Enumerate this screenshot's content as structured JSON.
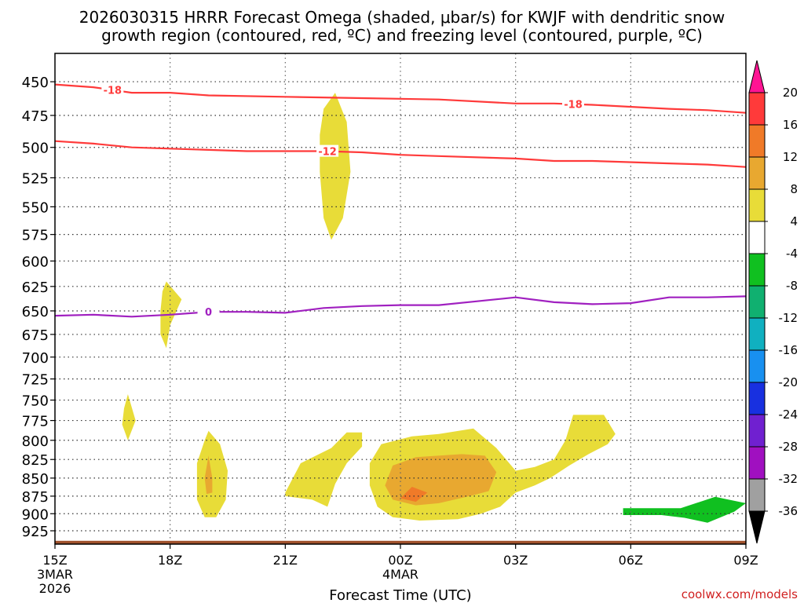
{
  "chart_data": {
    "type": "heatmap",
    "title_line1": "2026030315 HRRR Forecast Omega (shaded, μbar/s) for KWJF with dendritic snow",
    "title_line2": "growth region (contoured, red, ºC) and freezing level (contoured, purple, ºC)",
    "xlabel": "Forecast Time (UTC)",
    "credit": "coolwx.com/models",
    "x_range_hours": [
      0,
      18
    ],
    "x_ticks": [
      {
        "hour": 0,
        "label": "15Z",
        "sub1": "3MAR",
        "sub2": "2026"
      },
      {
        "hour": 3,
        "label": "18Z"
      },
      {
        "hour": 6,
        "label": "21Z"
      },
      {
        "hour": 9,
        "label": "00Z",
        "sub1": "4MAR"
      },
      {
        "hour": 12,
        "label": "03Z"
      },
      {
        "hour": 15,
        "label": "06Z"
      },
      {
        "hour": 18,
        "label": "09Z"
      }
    ],
    "y_ticks_hpa": [
      450,
      475,
      500,
      525,
      550,
      575,
      600,
      625,
      650,
      675,
      700,
      725,
      750,
      775,
      800,
      825,
      850,
      875,
      900,
      925
    ],
    "y_range_hpa": [
      430,
      945
    ],
    "ground_hpa": 940,
    "colorbar": {
      "labels": [
        "20",
        "16",
        "12",
        "8",
        "4",
        "-4",
        "-8",
        "-12",
        "-16",
        "-20",
        "-24",
        "-28",
        "-32",
        "-36"
      ],
      "colors_top_down": [
        "#ff1493",
        "#ff3a3a",
        "#f07a28",
        "#e8a830",
        "#e8dc38",
        "#ffffff",
        "#10c020",
        "#10b070",
        "#10b0c0",
        "#1890f0",
        "#1830e0",
        "#7020d0",
        "#a010c0",
        "#a0a0a0",
        "#000000"
      ]
    },
    "series": [
      {
        "name": "-18 C isotherm",
        "label": "-18",
        "color": "#ff3a3a",
        "label_hours": [
          1.5,
          13.5
        ],
        "points": [
          [
            0,
            452
          ],
          [
            1,
            454
          ],
          [
            2,
            458
          ],
          [
            3,
            458
          ],
          [
            4,
            460
          ],
          [
            6,
            461
          ],
          [
            8,
            462
          ],
          [
            10,
            463
          ],
          [
            12,
            466
          ],
          [
            13,
            466
          ],
          [
            14,
            467
          ],
          [
            16,
            470
          ],
          [
            17,
            471
          ],
          [
            18,
            473
          ]
        ]
      },
      {
        "name": "-12 C isotherm",
        "label": "-12",
        "color": "#ff3a3a",
        "label_hours": [
          7.1
        ],
        "points": [
          [
            0,
            495
          ],
          [
            1,
            497
          ],
          [
            2,
            500
          ],
          [
            3,
            501
          ],
          [
            4,
            502
          ],
          [
            5,
            503
          ],
          [
            6,
            503
          ],
          [
            7,
            503
          ],
          [
            8,
            504
          ],
          [
            9,
            506
          ],
          [
            10,
            507
          ],
          [
            12,
            509
          ],
          [
            13,
            511
          ],
          [
            14,
            511
          ],
          [
            16,
            513
          ],
          [
            17,
            514
          ],
          [
            18,
            516
          ]
        ]
      },
      {
        "name": "0 C freezing level",
        "label": "0",
        "color": "#a020c0",
        "label_hours": [
          4
        ],
        "points": [
          [
            0,
            655
          ],
          [
            1,
            654
          ],
          [
            2,
            656
          ],
          [
            3,
            654
          ],
          [
            4,
            651
          ],
          [
            5,
            651
          ],
          [
            6,
            652
          ],
          [
            7,
            647
          ],
          [
            8,
            645
          ],
          [
            9,
            644
          ],
          [
            10,
            644
          ],
          [
            11,
            640
          ],
          [
            12,
            636
          ],
          [
            13,
            641
          ],
          [
            14,
            643
          ],
          [
            15,
            642
          ],
          [
            16,
            636
          ],
          [
            17,
            636
          ],
          [
            18,
            635
          ]
        ]
      }
    ],
    "omega_regions": [
      {
        "name": "upper-lift-22z",
        "value": 4,
        "color": "#e8dc38",
        "points": [
          [
            7.0,
            470
          ],
          [
            7.3,
            458
          ],
          [
            7.6,
            480
          ],
          [
            7.7,
            520
          ],
          [
            7.5,
            560
          ],
          [
            7.2,
            580
          ],
          [
            7.0,
            560
          ],
          [
            6.9,
            520
          ],
          [
            6.9,
            490
          ]
        ]
      },
      {
        "name": "lift-18z",
        "value": 4,
        "color": "#e8dc38",
        "points": [
          [
            2.8,
            630
          ],
          [
            2.9,
            620
          ],
          [
            3.3,
            638
          ],
          [
            3.0,
            665
          ],
          [
            2.9,
            690
          ],
          [
            2.75,
            675
          ],
          [
            2.75,
            650
          ]
        ]
      },
      {
        "name": "lift-16z",
        "value": 4,
        "color": "#e8dc38",
        "points": [
          [
            1.8,
            760
          ],
          [
            1.9,
            743
          ],
          [
            2.1,
            775
          ],
          [
            1.9,
            800
          ],
          [
            1.75,
            780
          ]
        ]
      },
      {
        "name": "lift-19z",
        "value": 4,
        "color": "#e8dc38",
        "points": [
          [
            3.7,
            830
          ],
          [
            3.9,
            800
          ],
          [
            4.0,
            788
          ],
          [
            4.3,
            805
          ],
          [
            4.5,
            840
          ],
          [
            4.45,
            880
          ],
          [
            4.2,
            905
          ],
          [
            3.9,
            905
          ],
          [
            3.7,
            880
          ]
        ]
      },
      {
        "name": "core-19z",
        "value": 8,
        "color": "#e8a830",
        "points": [
          [
            3.9,
            850
          ],
          [
            4.0,
            820
          ],
          [
            4.1,
            850
          ],
          [
            4.1,
            870
          ],
          [
            3.95,
            872
          ]
        ]
      },
      {
        "name": "lift-2230z",
        "value": 4,
        "color": "#e8dc38",
        "points": [
          [
            6.0,
            870
          ],
          [
            6.4,
            830
          ],
          [
            7.2,
            810
          ],
          [
            7.6,
            790
          ],
          [
            8.0,
            790
          ],
          [
            8.0,
            808
          ],
          [
            7.6,
            830
          ],
          [
            7.3,
            858
          ],
          [
            7.1,
            890
          ],
          [
            6.7,
            880
          ],
          [
            6.0,
            875
          ]
        ]
      },
      {
        "name": "lift-01z-outer",
        "value": 4,
        "color": "#e8dc38",
        "points": [
          [
            8.2,
            830
          ],
          [
            8.5,
            805
          ],
          [
            9.3,
            795
          ],
          [
            10.0,
            792
          ],
          [
            10.9,
            785
          ],
          [
            11.5,
            810
          ],
          [
            12.0,
            840
          ],
          [
            12.5,
            835
          ],
          [
            13.0,
            825
          ],
          [
            13.3,
            800
          ],
          [
            13.5,
            768
          ],
          [
            14.3,
            768
          ],
          [
            14.6,
            792
          ],
          [
            14.4,
            805
          ],
          [
            13.9,
            818
          ],
          [
            13.4,
            833
          ],
          [
            12.9,
            850
          ],
          [
            12.5,
            860
          ],
          [
            12.0,
            870
          ],
          [
            11.6,
            890
          ],
          [
            11.1,
            900
          ],
          [
            10.5,
            908
          ],
          [
            9.5,
            910
          ],
          [
            8.8,
            905
          ],
          [
            8.4,
            890
          ],
          [
            8.2,
            860
          ]
        ]
      },
      {
        "name": "lift-01z-mid",
        "value": 8,
        "color": "#e8a830",
        "points": [
          [
            8.6,
            860
          ],
          [
            8.8,
            833
          ],
          [
            9.4,
            822
          ],
          [
            10.6,
            818
          ],
          [
            11.2,
            820
          ],
          [
            11.5,
            842
          ],
          [
            11.3,
            868
          ],
          [
            10.8,
            875
          ],
          [
            10.0,
            885
          ],
          [
            9.4,
            888
          ],
          [
            8.8,
            880
          ]
        ]
      },
      {
        "name": "lift-01z-core",
        "value": 12,
        "color": "#f07a28",
        "points": [
          [
            9.0,
            878
          ],
          [
            9.3,
            862
          ],
          [
            9.7,
            870
          ],
          [
            9.4,
            883
          ]
        ]
      },
      {
        "name": "sink-07z",
        "value": -4,
        "color": "#10c020",
        "points": [
          [
            14.8,
            892
          ],
          [
            14.8,
            902
          ],
          [
            15.8,
            902
          ],
          [
            16.4,
            906
          ],
          [
            17.0,
            913
          ],
          [
            17.7,
            897
          ],
          [
            18.0,
            885
          ],
          [
            17.2,
            876
          ],
          [
            16.3,
            892
          ],
          [
            15.9,
            892
          ]
        ]
      }
    ]
  }
}
